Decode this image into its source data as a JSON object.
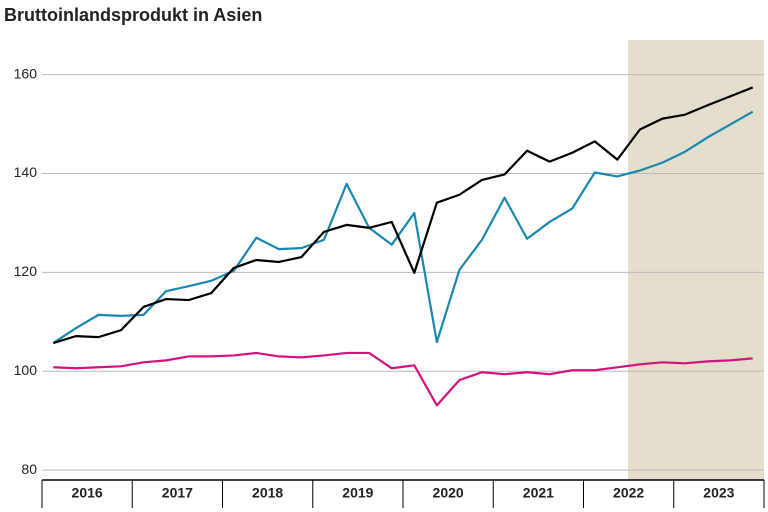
{
  "chart_data": {
    "type": "line",
    "title": "Bruttoinlandsprodukt in Asien",
    "categories": [
      null,
      "2016",
      null,
      null,
      null,
      "2017",
      null,
      null,
      null,
      "2018",
      null,
      null,
      null,
      "2019",
      null,
      null,
      null,
      "2020",
      null,
      null,
      null,
      "2021",
      null,
      null,
      null,
      "2022",
      null,
      null,
      null,
      "2023",
      null,
      null
    ],
    "ylim": [
      78,
      167
    ],
    "yticks": [
      80,
      100,
      120,
      140,
      160
    ],
    "grid": true,
    "series": [
      {
        "color": "#1a87b0",
        "values": [
          105.7,
          108.7,
          111.4,
          111.2,
          111.4,
          116.2,
          117.2,
          118.3,
          120.3,
          127.0,
          124.7,
          124.9,
          126.6,
          137.9,
          129.0,
          125.6,
          132.0,
          105.9,
          120.5,
          126.6,
          135.1,
          126.8,
          130.2,
          132.9,
          140.2,
          139.4,
          140.6,
          142.2,
          144.4,
          147.3,
          149.9,
          152.5
        ]
      },
      {
        "color": "#d4127f",
        "values": [
          100.8,
          100.6,
          100.8,
          101.0,
          101.8,
          102.2,
          103.0,
          103.0,
          103.2,
          103.7,
          103.0,
          102.8,
          103.2,
          103.7,
          103.7,
          100.6,
          101.2,
          93.1,
          98.2,
          99.8,
          99.4,
          99.8,
          99.4,
          100.2,
          100.2,
          100.8,
          101.4,
          101.8,
          101.6,
          102.0,
          102.2,
          102.6
        ]
      },
      {
        "color": "#000000",
        "values": [
          105.7,
          107.1,
          106.9,
          108.3,
          113.0,
          114.6,
          114.4,
          115.8,
          120.9,
          122.5,
          122.1,
          123.1,
          128.2,
          129.6,
          129.0,
          130.2,
          119.9,
          134.1,
          135.7,
          138.7,
          139.8,
          144.6,
          142.4,
          144.2,
          146.5,
          142.8,
          148.9,
          151.1,
          151.9,
          153.8,
          155.6,
          157.4
        ]
      }
    ]
  }
}
